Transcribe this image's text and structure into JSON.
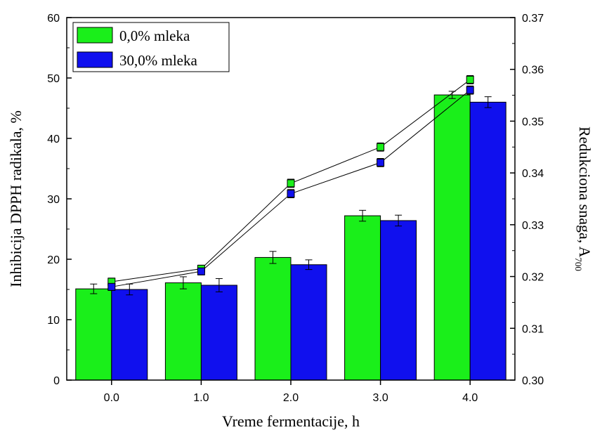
{
  "chart_data": {
    "type": "bar",
    "xlabel": "Vreme fermentacije, h",
    "ylabel": "Inhibicija DPPH radikala, %",
    "y2label_main": "Redukciona snaga, A",
    "y2label_sub": "700",
    "categories": [
      "0.0",
      "1.0",
      "2.0",
      "3.0",
      "4.0"
    ],
    "ylim": [
      0,
      60
    ],
    "yticks": [
      "0",
      "10",
      "20",
      "30",
      "40",
      "50",
      "60"
    ],
    "y2lim": [
      0.3,
      0.37
    ],
    "y2ticks": [
      "0.30",
      "0.31",
      "0.32",
      "0.33",
      "0.34",
      "0.35",
      "0.36",
      "0.37"
    ],
    "legend_position": "top-left",
    "series": [
      {
        "name": "0,0% mleka",
        "color": "#1aef1a",
        "bar_values": [
          15.1,
          16.1,
          20.3,
          27.2,
          47.2
        ],
        "bar_errors": [
          0.8,
          1.0,
          1.0,
          0.9,
          0.6
        ],
        "line_values": [
          0.319,
          0.3215,
          0.338,
          0.345,
          0.358
        ],
        "line_errors": [
          0.0007,
          0.0007,
          0.0008,
          0.0008,
          0.0008
        ]
      },
      {
        "name": "30,0% mleka",
        "color": "#1010ee",
        "bar_values": [
          15.0,
          15.7,
          19.1,
          26.4,
          46.0
        ],
        "bar_errors": [
          0.9,
          1.1,
          0.8,
          0.9,
          0.9
        ],
        "line_values": [
          0.318,
          0.321,
          0.336,
          0.342,
          0.356
        ],
        "line_errors": [
          0.0007,
          0.0007,
          0.0008,
          0.0008,
          0.0008
        ]
      }
    ]
  }
}
